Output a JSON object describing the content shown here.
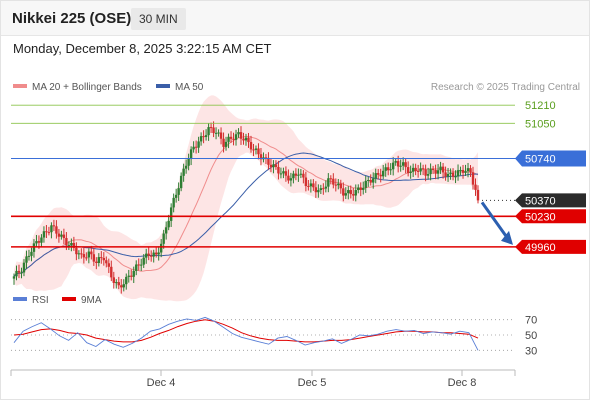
{
  "header": {
    "title": "Nikkei 225 (OSE)",
    "interval": "30 MIN",
    "timestamp": "Monday, December 8, 2025 3:22:15 AM CET"
  },
  "price_panel": {
    "legend": [
      {
        "label": "MA 20 + Bollinger Bands",
        "color": "#f08c8c"
      },
      {
        "label": "MA 50",
        "color": "#3a5ea8"
      }
    ],
    "credit": "Research © 2025 Trading Central",
    "levels": [
      {
        "value": 51210,
        "label": "51210",
        "kind": "green-line"
      },
      {
        "value": 51050,
        "label": "51050",
        "kind": "green-line"
      },
      {
        "value": 50740,
        "label": "50740",
        "kind": "blue-tag"
      },
      {
        "value": 50370,
        "label": "50370",
        "kind": "dark-tag"
      },
      {
        "value": 50230,
        "label": "50230",
        "kind": "red-tag"
      },
      {
        "value": 49960,
        "label": "49960",
        "kind": "red-tag"
      }
    ]
  },
  "rsi_panel": {
    "legend": [
      {
        "label": "RSI",
        "color": "#5a7fd6"
      },
      {
        "label": "9MA",
        "color": "#e00000"
      }
    ],
    "ticks": [
      "70",
      "50",
      "30"
    ]
  },
  "x_axis": {
    "labels": [
      "Dec 4",
      "Dec 5",
      "Dec 8"
    ]
  },
  "colors": {
    "up_candle": "#2e7d32",
    "down_candle": "#d32f2f",
    "bollinger_fill": "#fde0e0",
    "ma20": "#f08c8c",
    "ma50": "#3a5ea8",
    "support": "#e00000",
    "pivot": "#3a6fd8",
    "resistance": "#8bc34a",
    "arrow": "#2c5fb0"
  },
  "chart_data": [
    {
      "type": "candlestick",
      "title": "Nikkei 225 (OSE)",
      "interval": "30 MIN",
      "x_labels": [
        "Dec 4",
        "Dec 5",
        "Dec 8"
      ],
      "y_right_labels": [
        51210,
        51050,
        50740,
        50370,
        50230,
        49960
      ],
      "close_path": [
        49700,
        49760,
        49900,
        50000,
        50070,
        50140,
        50070,
        50000,
        49950,
        49870,
        49900,
        49830,
        49870,
        49700,
        49600,
        49670,
        49750,
        49830,
        49900,
        49880,
        50050,
        50300,
        50500,
        50700,
        50840,
        50910,
        51000,
        50980,
        50870,
        50920,
        50950,
        50900,
        50820,
        50760,
        50700,
        50650,
        50600,
        50560,
        50620,
        50520,
        50480,
        50450,
        50550,
        50520,
        50440,
        50430,
        50460,
        50520,
        50570,
        50610,
        50650,
        50700,
        50680,
        50620,
        50650,
        50610,
        50630,
        50640,
        50590,
        50600,
        50640,
        50620,
        50370
      ],
      "last_price": 50370,
      "pivot": 50740,
      "supports": [
        50230,
        49960
      ],
      "resistances": [
        51050,
        51210
      ],
      "overlays": [
        "MA 20 + Bollinger Bands",
        "MA 50"
      ]
    },
    {
      "type": "line",
      "title": "RSI",
      "series": [
        {
          "name": "RSI",
          "values": [
            40,
            55,
            61,
            66,
            58,
            49,
            43,
            53,
            40,
            35,
            44,
            38,
            34,
            39,
            46,
            55,
            58,
            64,
            68,
            71,
            69,
            73,
            68,
            60,
            52,
            47,
            44,
            41,
            38,
            46,
            48,
            43,
            37,
            40,
            42,
            45,
            39,
            44,
            50,
            49,
            51,
            55,
            57,
            55,
            56,
            52,
            54,
            53,
            51,
            55,
            53,
            30
          ]
        },
        {
          "name": "9MA",
          "values": [
            50,
            51,
            54,
            57,
            58,
            56,
            53,
            52,
            50,
            46,
            44,
            42,
            41,
            41,
            43,
            47,
            52,
            56,
            61,
            65,
            68,
            70,
            68,
            64,
            59,
            53,
            49,
            46,
            44,
            43,
            43,
            42,
            41,
            41,
            42,
            43,
            43,
            44,
            46,
            48,
            50,
            52,
            54,
            55,
            55,
            54,
            54,
            53,
            53,
            52,
            51,
            46
          ]
        }
      ],
      "y_ticks": [
        70,
        50,
        30
      ]
    }
  ]
}
